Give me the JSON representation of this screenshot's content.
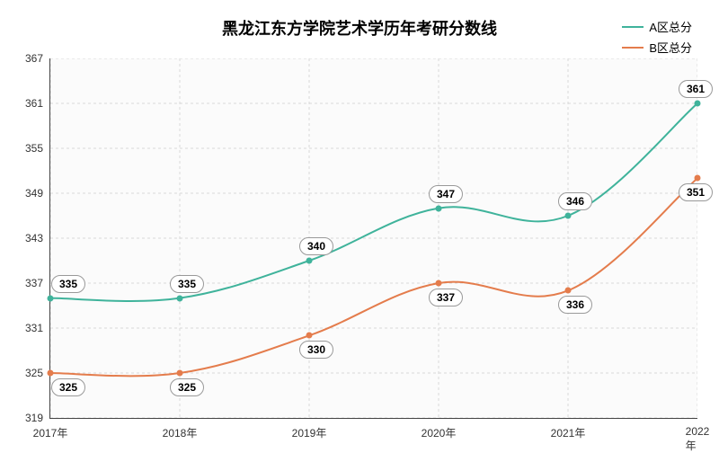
{
  "chart": {
    "type": "line",
    "title": "黑龙江东方学院艺术学历年考研分数线",
    "title_fontsize": 18,
    "background_color": "#ffffff",
    "plot_background": "#fbfbfb",
    "grid_color": "#d8d8d8",
    "axis_color": "#444444",
    "label_fontsize": 12,
    "ylim": [
      319,
      367
    ],
    "yticks": [
      319,
      325,
      331,
      337,
      343,
      349,
      355,
      361,
      367
    ],
    "categories": [
      "2017年",
      "2018年",
      "2019年",
      "2020年",
      "2021年",
      "2022年"
    ],
    "series": [
      {
        "name": "A区总分",
        "color": "#3fb39b",
        "values": [
          335,
          335,
          340,
          347,
          346,
          361
        ],
        "label_offset_y": -16
      },
      {
        "name": "B区总分",
        "color": "#e47c4c",
        "values": [
          325,
          325,
          330,
          337,
          336,
          351
        ],
        "label_offset_y": 16
      }
    ],
    "line_width": 2,
    "marker_radius": 3.5
  }
}
